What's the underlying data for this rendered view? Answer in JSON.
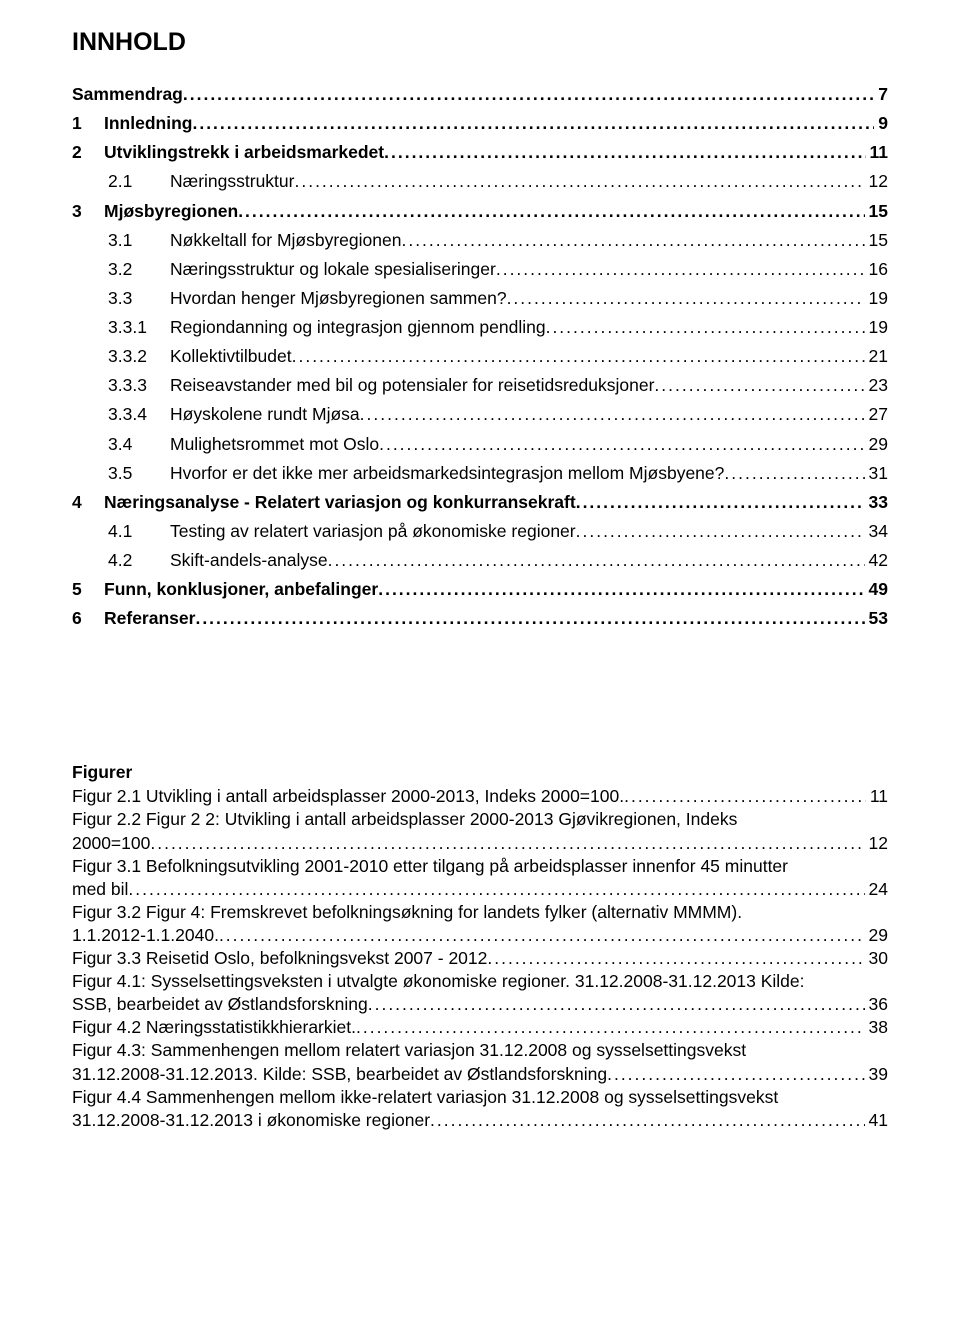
{
  "title": "INNHOLD",
  "toc": [
    {
      "level": 0,
      "bold": true,
      "num": "",
      "label": "Sammendrag",
      "page": "7"
    },
    {
      "level": 0,
      "bold": true,
      "num": "1",
      "label": "Innledning",
      "page": "9"
    },
    {
      "level": 0,
      "bold": true,
      "num": "2",
      "label": "Utviklingstrekk i arbeidsmarkedet",
      "page": "11"
    },
    {
      "level": 1,
      "bold": false,
      "num": "2.1",
      "label": "Næringsstruktur",
      "page": "12"
    },
    {
      "level": 0,
      "bold": true,
      "num": "3",
      "label": "Mjøsbyregionen",
      "page": "15"
    },
    {
      "level": 1,
      "bold": false,
      "num": "3.1",
      "label": "Nøkkeltall for Mjøsbyregionen",
      "page": "15"
    },
    {
      "level": 1,
      "bold": false,
      "num": "3.2",
      "label": "Næringsstruktur og lokale spesialiseringer",
      "page": "16"
    },
    {
      "level": 1,
      "bold": false,
      "num": "3.3",
      "label": "Hvordan henger Mjøsbyregionen sammen?",
      "page": "19"
    },
    {
      "level": 1,
      "bold": false,
      "num": "3.3.1",
      "label": "Regiondanning og integrasjon gjennom pendling",
      "page": "19"
    },
    {
      "level": 1,
      "bold": false,
      "num": "3.3.2",
      "label": "Kollektivtilbudet",
      "page": "21"
    },
    {
      "level": 1,
      "bold": false,
      "num": "3.3.3",
      "label": "Reiseavstander med bil og potensialer for reisetidsreduksjoner",
      "page": "23"
    },
    {
      "level": 1,
      "bold": false,
      "num": "3.3.4",
      "label": "Høyskolene rundt Mjøsa",
      "page": "27"
    },
    {
      "level": 1,
      "bold": false,
      "num": "3.4",
      "label": "Mulighetsrommet mot Oslo",
      "page": "29"
    },
    {
      "level": 1,
      "bold": false,
      "num": "3.5",
      "label": "Hvorfor er det ikke mer arbeidsmarkedsintegrasjon mellom Mjøsbyene?",
      "page": "31"
    },
    {
      "level": 0,
      "bold": true,
      "num": "4",
      "label": "Næringsanalyse - Relatert variasjon og konkurransekraft",
      "page": "33"
    },
    {
      "level": 1,
      "bold": false,
      "num": "4.1",
      "label": "Testing av relatert variasjon på økonomiske regioner",
      "page": "34"
    },
    {
      "level": 1,
      "bold": false,
      "num": "4.2",
      "label": "Skift-andels-analyse",
      "page": "42"
    },
    {
      "level": 0,
      "bold": true,
      "num": "5",
      "label": "Funn, konklusjoner, anbefalinger",
      "page": "49"
    },
    {
      "level": 0,
      "bold": true,
      "num": "6",
      "label": "Referanser",
      "page": "53"
    }
  ],
  "figurer_heading": "Figurer",
  "figurer": [
    {
      "lines": [
        "Figur 2.1 Utvikling i antall arbeidsplasser 2000-2013, Indeks 2000=100."
      ],
      "page": "11"
    },
    {
      "lines": [
        "Figur 2.2 Figur 2 2: Utvikling i antall arbeidsplasser 2000-2013 Gjøvikregionen, Indeks",
        "2000=100"
      ],
      "page": "12"
    },
    {
      "lines": [
        "Figur 3.1 Befolkningsutvikling 2001-2010 etter tilgang på arbeidsplasser innenfor 45 minutter",
        "med bil"
      ],
      "page": "24"
    },
    {
      "lines": [
        "Figur 3.2 Figur 4: Fremskrevet befolkningsøkning for landets fylker (alternativ MMMM).",
        "1.1.2012-1.1.2040."
      ],
      "page": "29"
    },
    {
      "lines": [
        "Figur 3.3 Reisetid Oslo, befolkningsvekst 2007 - 2012"
      ],
      "page": "30"
    },
    {
      "lines": [
        "Figur 4.1: Sysselsettingsveksten i utvalgte økonomiske regioner. 31.12.2008-31.12.2013 Kilde:",
        "SSB, bearbeidet av Østlandsforskning"
      ],
      "page": "36"
    },
    {
      "lines": [
        "Figur 4.2 Næringsstatistikkhierarkiet."
      ],
      "page": "38"
    },
    {
      "lines": [
        "Figur 4.3: Sammenhengen mellom relatert variasjon 31.12.2008 og sysselsettingsvekst",
        "31.12.2008-31.12.2013. Kilde: SSB, bearbeidet av Østlandsforskning"
      ],
      "page": "39"
    },
    {
      "lines": [
        "Figur 4.4 Sammenhengen mellom ikke-relatert variasjon 31.12.2008 og sysselsettingsvekst",
        "31.12.2008-31.12.2013 i økonomiske regioner"
      ],
      "page": "41"
    }
  ]
}
